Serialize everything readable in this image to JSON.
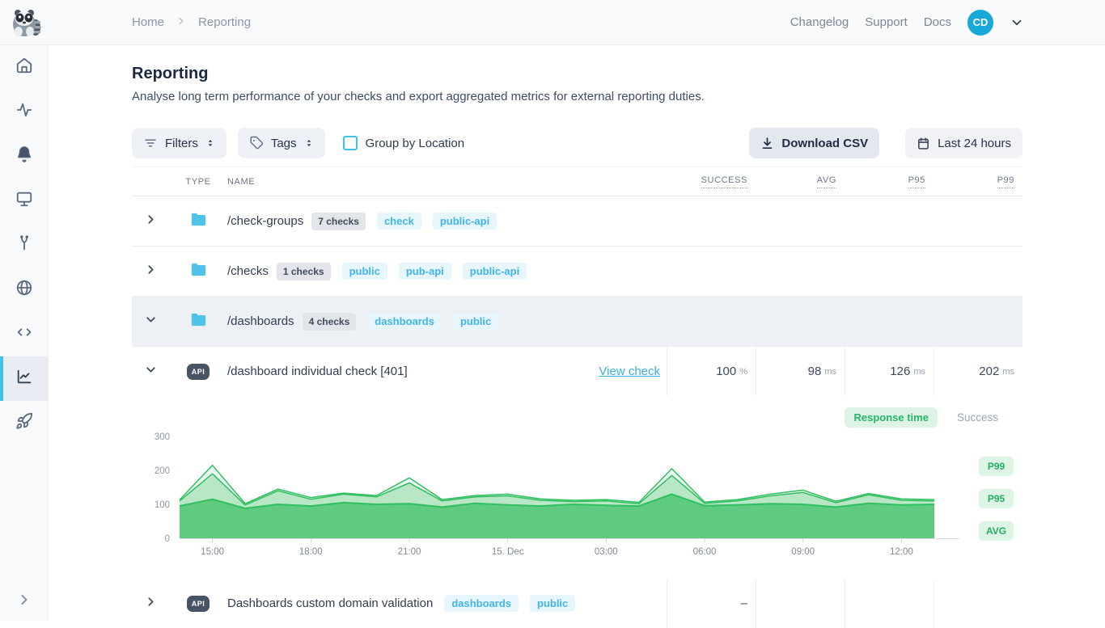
{
  "topbar": {
    "breadcrumb": [
      "Home",
      "Reporting"
    ],
    "links": [
      "Changelog",
      "Support",
      "Docs"
    ],
    "avatar": "CD"
  },
  "sidebar": {
    "items": [
      {
        "icon": "home-icon",
        "active": false
      },
      {
        "icon": "activity-icon",
        "active": false
      },
      {
        "icon": "bell-icon",
        "active": false
      },
      {
        "icon": "monitor-icon",
        "active": false
      },
      {
        "icon": "maintenance-icon",
        "active": false
      },
      {
        "icon": "globe-icon",
        "active": false
      },
      {
        "icon": "code-icon",
        "active": false
      },
      {
        "icon": "reporting-chart-icon",
        "active": true
      },
      {
        "icon": "rocket-icon",
        "active": false
      }
    ]
  },
  "page": {
    "title": "Reporting",
    "subtitle": "Analyse long term performance of your checks and export aggregated metrics for external reporting duties."
  },
  "toolbar": {
    "filters_label": "Filters",
    "tags_label": "Tags",
    "group_by_location_label": "Group by Location",
    "group_by_location_checked": false,
    "download_csv_label": "Download CSV",
    "date_range_label": "Last 24 hours"
  },
  "table": {
    "headers": [
      "TYPE",
      "NAME",
      "SUCCESS",
      "AVG",
      "P95",
      "P99"
    ],
    "rows": [
      {
        "kind": "group",
        "expanded": false,
        "highlighted": false,
        "name": "/check-groups",
        "count": "7 checks",
        "tags": [
          "check",
          "public-api"
        ],
        "metrics": null,
        "chart": false
      },
      {
        "kind": "group",
        "expanded": false,
        "highlighted": false,
        "name": "/checks",
        "count": "1 checks",
        "tags": [
          "public",
          "pub-api",
          "public-api"
        ],
        "metrics": null,
        "chart": false
      },
      {
        "kind": "group",
        "expanded": true,
        "highlighted": true,
        "name": "/dashboards",
        "count": "4 checks",
        "tags": [
          "dashboards",
          "public"
        ],
        "metrics": null,
        "chart": false
      },
      {
        "kind": "check",
        "expanded": true,
        "highlighted": false,
        "type_badge": "API",
        "name": "/dashboard individual check [401]",
        "link": "View check",
        "metrics": [
          {
            "value": "100",
            "unit": "%"
          },
          {
            "value": "98",
            "unit": "ms"
          },
          {
            "value": "126",
            "unit": "ms"
          },
          {
            "value": "202",
            "unit": "ms"
          }
        ],
        "tags": [],
        "chart": true
      },
      {
        "kind": "check",
        "expanded": false,
        "highlighted": false,
        "type_badge": "API",
        "name": "Dashboards custom domain validation",
        "tags": [
          "dashboards",
          "public"
        ],
        "metrics": [
          {
            "value": "–",
            "unit": ""
          },
          null,
          null,
          null
        ],
        "chart": false
      }
    ]
  },
  "chart_data": {
    "type": "area",
    "title": "Response time",
    "legend": [
      "Response time",
      "Success"
    ],
    "legend_active": "Response time",
    "unit": "ms",
    "ylim": [
      0,
      300
    ],
    "y_ticks": [
      0,
      100,
      200,
      300
    ],
    "x": [
      "14:00",
      "15:00",
      "16:00",
      "17:00",
      "18:00",
      "19:00",
      "20:00",
      "21:00",
      "22:00",
      "23:00",
      "00:00",
      "01:00",
      "02:00",
      "03:00",
      "04:00",
      "05:00",
      "06:00",
      "07:00",
      "08:00",
      "09:00",
      "10:00",
      "11:00",
      "12:00",
      "13:00"
    ],
    "x_tick_labels": [
      "15:00",
      "18:00",
      "21:00",
      "15. Dec",
      "03:00",
      "06:00",
      "09:00",
      "12:00"
    ],
    "x_tick_indices": [
      1,
      4,
      7,
      10,
      13,
      16,
      19,
      22
    ],
    "series": [
      {
        "name": "P99",
        "values": [
          113,
          215,
          102,
          145,
          120,
          133,
          126,
          178,
          114,
          126,
          130,
          116,
          112,
          114,
          106,
          205,
          107,
          114,
          130,
          142,
          109,
          132,
          116,
          114
        ]
      },
      {
        "name": "P95",
        "values": [
          110,
          190,
          98,
          140,
          115,
          130,
          122,
          163,
          110,
          122,
          125,
          112,
          108,
          110,
          102,
          185,
          103,
          110,
          125,
          135,
          105,
          128,
          112,
          110
        ]
      },
      {
        "name": "AVG",
        "values": [
          95,
          115,
          88,
          100,
          95,
          105,
          100,
          102,
          92,
          103,
          98,
          95,
          100,
          97,
          95,
          130,
          96,
          98,
          102,
          100,
          92,
          103,
          98,
          100
        ]
      }
    ],
    "grid": false,
    "legend_position": "top-right",
    "colors": {
      "avg_fill": "#5ecb81",
      "p95_fill": "#b7e7c5",
      "p99_fill": "#eaf8ef",
      "stroke": "#2fbf5f",
      "badge_bg": "#ddf4e7",
      "badge_text": "#23af62"
    }
  },
  "colors": {
    "accent_cyan": "#3ec1ec",
    "brand_green": "#2fbf5f",
    "tag_blue": "#41b5e8",
    "avatar_bg": "#17a8d7"
  }
}
